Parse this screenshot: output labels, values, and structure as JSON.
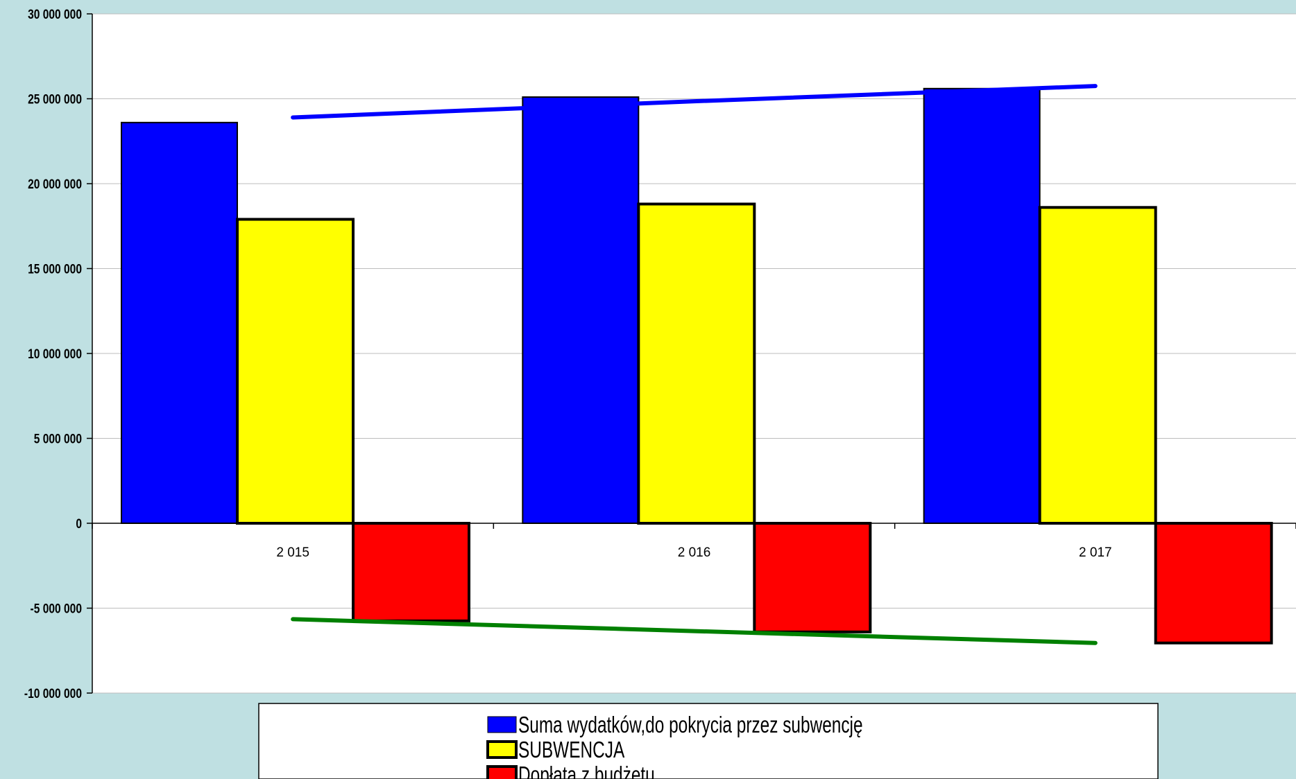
{
  "chart_data": {
    "type": "bar",
    "categories": [
      "2 015",
      "2 016",
      "2 017"
    ],
    "series": [
      {
        "name": "Suma wydatków,do  pokrycia przez subwencję",
        "color": "#0000ff",
        "values": [
          23600000,
          25100000,
          25600000
        ]
      },
      {
        "name": "SUBWENCJA",
        "color": "#ffff00",
        "values": [
          17900000,
          18800000,
          18600000
        ]
      },
      {
        "name": "Dopłata z budżetu",
        "color": "#ff0000",
        "values": [
          -5750000,
          -6400000,
          -7050000
        ]
      }
    ],
    "trendlines": [
      {
        "color": "#0000ff",
        "values": [
          23900000,
          24850000,
          25750000
        ]
      },
      {
        "color": "#008000",
        "values": [
          -5650000,
          -6350000,
          -7050000
        ]
      }
    ],
    "yticks": [
      "30 000 000",
      "25 000 000",
      "20 000 000",
      "15 000 000",
      "10 000 000",
      "5 000 000",
      "0",
      "-5 000 000",
      "-10 000 000"
    ],
    "ylim": [
      -10000000,
      30000000
    ],
    "grid": true,
    "legend_position": "bottom"
  }
}
